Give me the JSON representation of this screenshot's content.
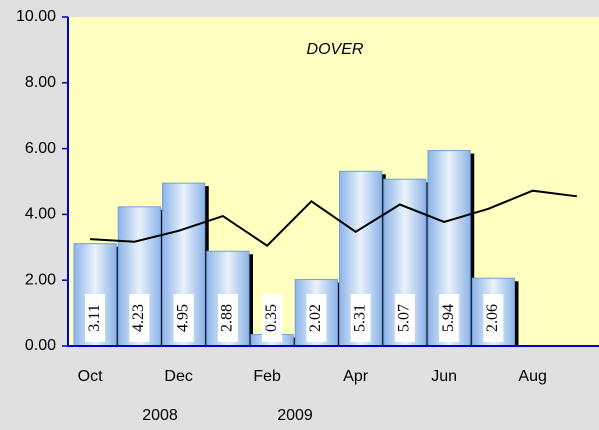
{
  "chart_data": {
    "type": "bar",
    "title": "DOVER",
    "categories": [
      "Oct",
      null,
      "Dec",
      null,
      "Feb",
      null,
      "Apr",
      null,
      "Jun",
      null,
      "Aug",
      null
    ],
    "year_labels": [
      "2008",
      "2009"
    ],
    "series": [
      {
        "kind": "bar",
        "color": "#6fa0e0",
        "values": [
          3.11,
          4.23,
          4.95,
          2.88,
          0.35,
          2.02,
          5.31,
          5.07,
          5.94,
          2.06,
          null,
          null
        ]
      },
      {
        "kind": "line",
        "color": "#000000",
        "values": [
          3.25,
          3.17,
          3.5,
          3.95,
          3.05,
          4.4,
          3.47,
          4.3,
          3.77,
          4.17,
          4.72,
          4.55
        ]
      }
    ],
    "ylim": [
      0,
      10
    ],
    "yticks": [
      {
        "value": 0,
        "label": "0.00"
      },
      {
        "value": 2,
        "label": "2.00"
      },
      {
        "value": 4,
        "label": "4.00"
      },
      {
        "value": 6,
        "label": "6.00"
      },
      {
        "value": 8,
        "label": "8.00"
      },
      {
        "value": 10,
        "label": "10.00"
      }
    ]
  }
}
